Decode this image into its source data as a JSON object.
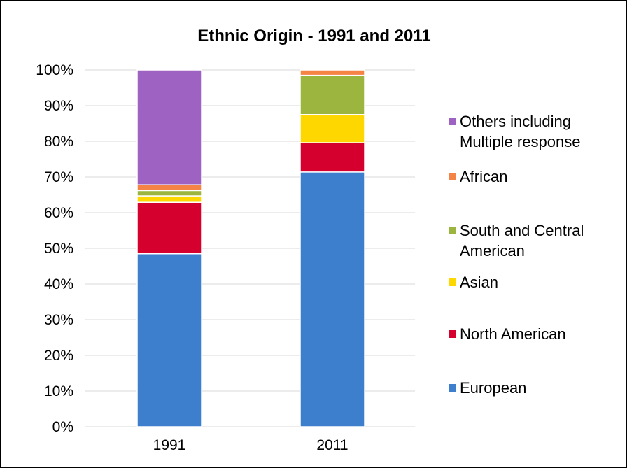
{
  "chart_data": {
    "type": "stacked-bar-100",
    "title": "Ethnic Origin - 1991 and 2011",
    "xlabel": "",
    "ylabel": "",
    "ylim": [
      0,
      100
    ],
    "yticks": [
      "0%",
      "10%",
      "20%",
      "30%",
      "40%",
      "50%",
      "60%",
      "70%",
      "80%",
      "90%",
      "100%"
    ],
    "grid": true,
    "legend_position": "right",
    "categories": [
      "1991",
      "2011"
    ],
    "series": [
      {
        "name": "European",
        "color": "#3d7fcc",
        "values": [
          48.5,
          71.4
        ]
      },
      {
        "name": "North American",
        "color": "#d6002e",
        "values": [
          14.4,
          8.2
        ]
      },
      {
        "name": "Asian",
        "color": "#ffd700",
        "values": [
          1.8,
          7.9
        ]
      },
      {
        "name": "South and Central American",
        "color": "#9bb53f",
        "values": [
          1.5,
          11.0
        ]
      },
      {
        "name": "African",
        "color": "#f58345",
        "values": [
          1.6,
          1.5
        ]
      },
      {
        "name": "Others including Multiple response",
        "color": "#9e62c2",
        "values": [
          32.2,
          0
        ]
      }
    ],
    "legend_lines": {
      "European": [
        "European"
      ],
      "North American": [
        "North American"
      ],
      "Asian": [
        "Asian"
      ],
      "South and Central American": [
        "South and Central",
        "American"
      ],
      "African": [
        "African"
      ],
      "Others including Multiple response": [
        "Others including",
        "Multiple response"
      ]
    }
  }
}
